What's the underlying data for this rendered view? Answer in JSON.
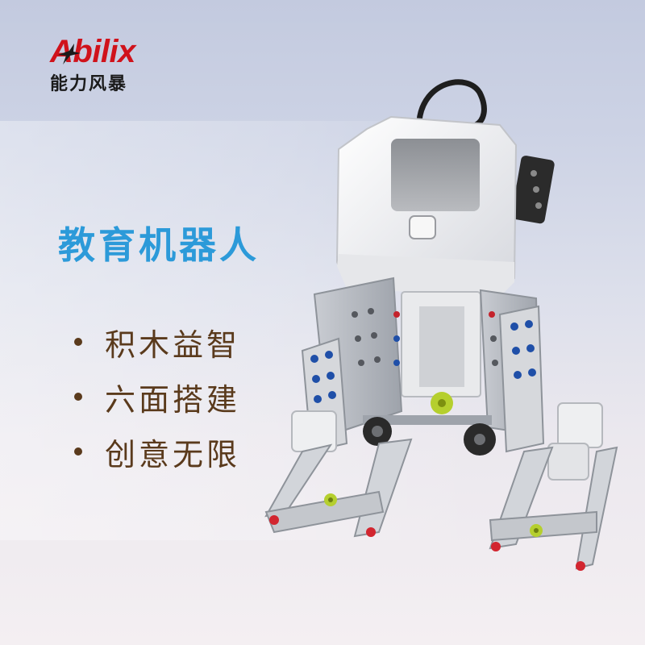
{
  "brand": {
    "name": "Abilix",
    "subtitle": "能力风暴",
    "color": "#d0121b"
  },
  "headline": "教育机器人",
  "features": [
    {
      "label": "积木益智"
    },
    {
      "label": "六面搭建"
    },
    {
      "label": "创意无限"
    }
  ],
  "colors": {
    "headline": "#2c9ad9",
    "feature_text": "#5a3a1c"
  },
  "image": {
    "subject": "robot-kit-illustration"
  }
}
